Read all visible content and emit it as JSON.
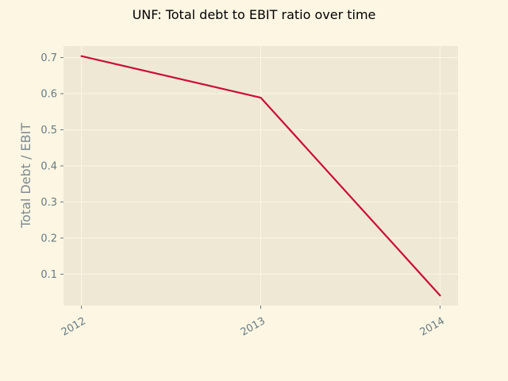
{
  "chart_data": {
    "type": "line",
    "title": "UNF: Total debt to EBIT ratio over time",
    "xlabel": "",
    "ylabel": "Total Debt / EBIT",
    "x": [
      "2012",
      "2013",
      "2014"
    ],
    "series": [
      {
        "values": [
          0.704,
          0.589,
          0.041
        ]
      }
    ],
    "xlim": [
      2011.9,
      2014.1
    ],
    "ylim": [
      0.013,
      0.732
    ],
    "yticks": [
      "0.1",
      "0.2",
      "0.3",
      "0.4",
      "0.5",
      "0.6",
      "0.7"
    ],
    "grid": true,
    "legend": "none",
    "colors": {
      "background": "#fdf6e3",
      "plot_background": "#eee8d5",
      "line": "#cb0d35",
      "grid": "#fdf6e3",
      "tick_text": "#657b83"
    }
  }
}
